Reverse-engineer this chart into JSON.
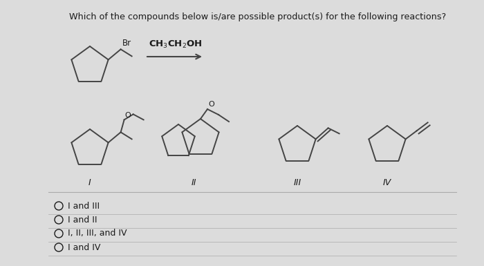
{
  "title": "Which of the compounds below is/are possible product(s) for the following reactions?",
  "bg_color": "#dcdcdc",
  "line_color": "#444444",
  "text_color": "#1a1a1a",
  "title_fontsize": 9.2,
  "label_fontsize": 9,
  "answer_fontsize": 9,
  "answer_choices": [
    "I and III",
    "I and II",
    "I, II, III, and IV",
    "I and IV"
  ]
}
